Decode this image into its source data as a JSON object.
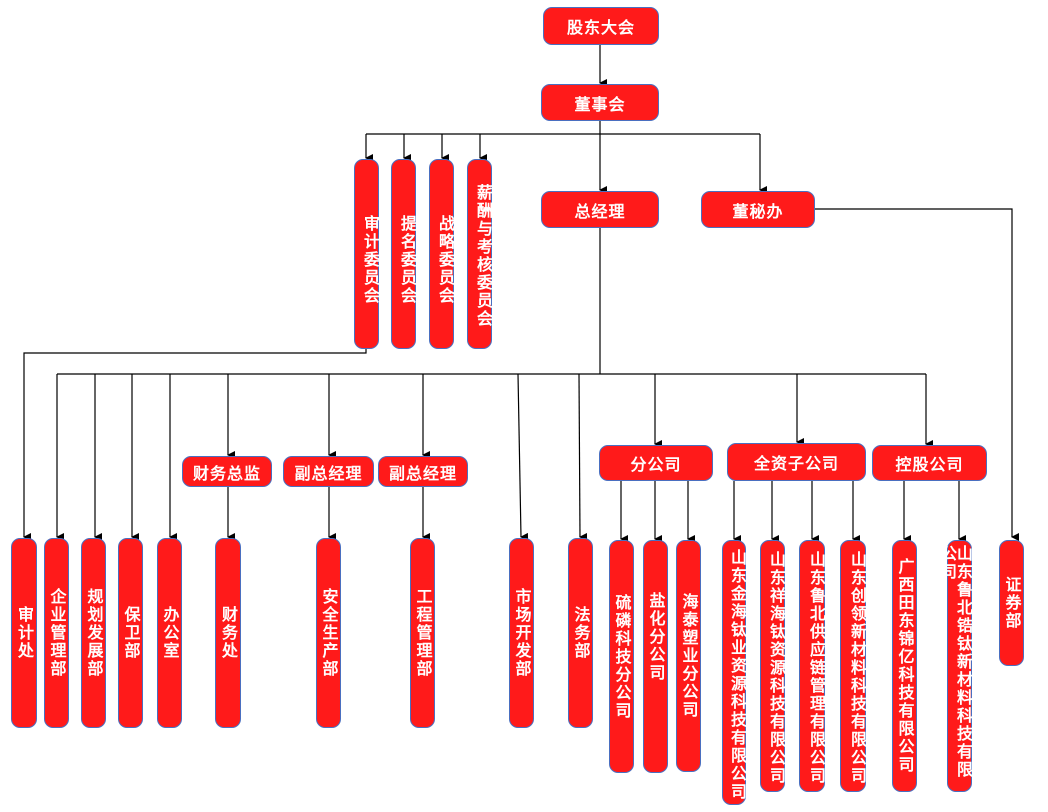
{
  "top": {
    "shareholders": "股东大会",
    "board": "董事会"
  },
  "committees": [
    "审计委员会",
    "提名委员会",
    "战略委员会",
    "薪酬与考核委员会"
  ],
  "general_manager": "总经理",
  "board_secretary_office": "董秘办",
  "mid": {
    "cfo": "财务总监",
    "deputy_gm_1": "副总经理",
    "deputy_gm_2": "副总经理",
    "branches": "分公司",
    "wholly_owned": "全资子公司",
    "holding": "控股公司"
  },
  "departments": [
    "审计处",
    "企业管理部",
    "规划发展部",
    "保卫部",
    "办公室",
    "财务处",
    "安全生产部",
    "工程管理部",
    "市场开发部",
    "法务部"
  ],
  "branches": [
    "硫磷科技分公司",
    "盐化分公司",
    "海泰塑业分公司"
  ],
  "wholly_owned": [
    "山东金海钛业资源科技有限公司",
    "山东祥海钛资源科技有限公司",
    "山东鲁北供应链管理有限公司",
    "山东创领新材料科技有限公司"
  ],
  "holding": [
    "广西田东锦亿科技有限公司",
    "山东鲁北锆钛新材料科技有限公司"
  ],
  "securities_dept": "证券部",
  "colors": {
    "box_fill": "#ff1a1a",
    "box_border": "#4a6fc0",
    "text": "#ffffff",
    "connector": "#000000"
  }
}
